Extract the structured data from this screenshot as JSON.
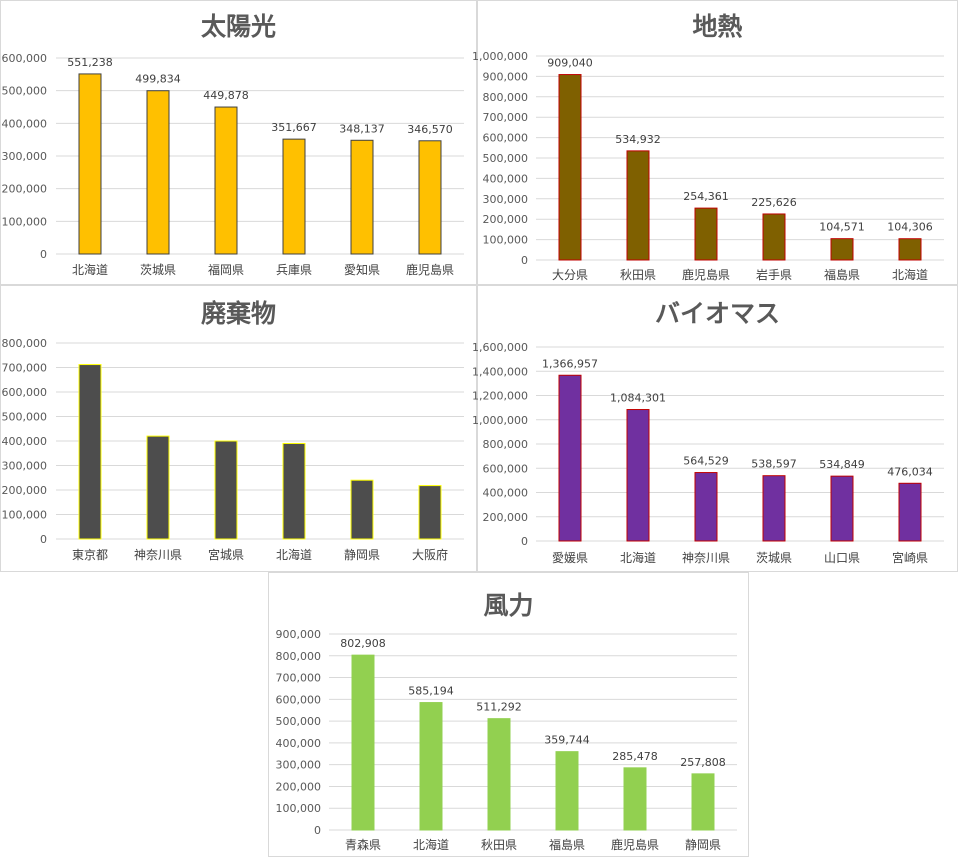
{
  "chart_data": [
    {
      "type": "bar",
      "title": "太陽光",
      "categories": [
        "北海道",
        "茨城県",
        "福岡県",
        "兵庫県",
        "愛知県",
        "鹿児島県"
      ],
      "values": [
        551238,
        499834,
        449878,
        351667,
        348137,
        346570
      ],
      "ylim": [
        0,
        600000
      ],
      "yticks": [
        "0",
        "100,000",
        "200,000",
        "300,000",
        "400,000",
        "500,000",
        "600,000"
      ],
      "data_labels": [
        "551,238",
        "499,834",
        "449,878",
        "351,667",
        "348,137",
        "346,570"
      ],
      "bar_color": "#ffc000",
      "bar_border": "#404040",
      "grid": true
    },
    {
      "type": "bar",
      "title": "地熱",
      "categories": [
        "大分県",
        "秋田県",
        "鹿児島県",
        "岩手県",
        "福島県",
        "北海道"
      ],
      "values": [
        909040,
        534932,
        254361,
        225626,
        104571,
        104306
      ],
      "ylim": [
        0,
        1000000
      ],
      "yticks": [
        "0",
        "100,000",
        "200,000",
        "300,000",
        "400,000",
        "500,000",
        "600,000",
        "700,000",
        "800,000",
        "900,000",
        "1,000,000"
      ],
      "data_labels": [
        "909,040",
        "534,932",
        "254,361",
        "225,626",
        "104,571",
        "104,306"
      ],
      "bar_color": "#7f6000",
      "bar_border": "#c00000",
      "grid": true
    },
    {
      "type": "bar",
      "title": "廃棄物",
      "categories": [
        "東京都",
        "神奈川県",
        "宮城県",
        "北海道",
        "静岡県",
        "大阪府"
      ],
      "values": [
        712000,
        420000,
        400000,
        390000,
        240000,
        218000
      ],
      "ylim": [
        0,
        800000
      ],
      "yticks": [
        "0",
        "100,000",
        "200,000",
        "300,000",
        "400,000",
        "500,000",
        "600,000",
        "700,000",
        "800,000"
      ],
      "data_labels": [],
      "bar_color": "#4d4d4d",
      "bar_border": "#ffff00",
      "grid": true
    },
    {
      "type": "bar",
      "title": "バイオマス",
      "categories": [
        "愛媛県",
        "北海道",
        "神奈川県",
        "茨城県",
        "山口県",
        "宮崎県"
      ],
      "values": [
        1366957,
        1084301,
        564529,
        538597,
        534849,
        476034
      ],
      "ylim": [
        0,
        1600000
      ],
      "yticks": [
        "0",
        "200,000",
        "400,000",
        "600,000",
        "800,000",
        "1,000,000",
        "1,200,000",
        "1,400,000",
        "1,600,000"
      ],
      "data_labels": [
        "1,366,957",
        "1,084,301",
        "564,529",
        "538,597",
        "534,849",
        "476,034"
      ],
      "bar_color": "#7030a0",
      "bar_border": "#c00000",
      "grid": true
    },
    {
      "type": "bar",
      "title": "風力",
      "categories": [
        "青森県",
        "北海道",
        "秋田県",
        "福島県",
        "鹿児島県",
        "静岡県"
      ],
      "values": [
        802908,
        585194,
        511292,
        359744,
        285478,
        257808
      ],
      "ylim": [
        0,
        900000
      ],
      "yticks": [
        "0",
        "100,000",
        "200,000",
        "300,000",
        "400,000",
        "500,000",
        "600,000",
        "700,000",
        "800,000",
        "900,000"
      ],
      "data_labels": [
        "802,908",
        "585,194",
        "511,292",
        "359,744",
        "285,478",
        "257,808"
      ],
      "bar_color": "#92d050",
      "bar_border": "#92d050",
      "grid": true
    }
  ]
}
